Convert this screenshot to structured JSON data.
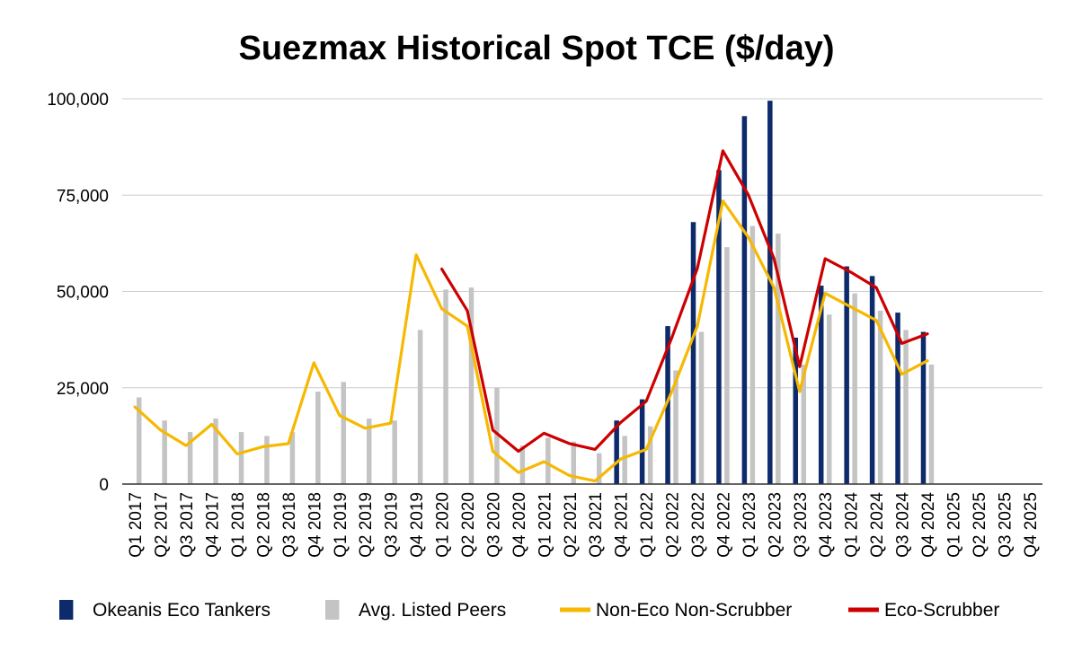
{
  "chart_data": {
    "type": "bar",
    "title": "Suezmax Historical Spot TCE ($/day)",
    "xlabel": "",
    "ylabel": "",
    "ylim": [
      0,
      100000
    ],
    "yticks": [
      0,
      25000,
      50000,
      75000,
      100000
    ],
    "ytick_labels": [
      "0",
      "25,000",
      "50,000",
      "75,000",
      "100,000"
    ],
    "grid": true,
    "legend_position": "bottom",
    "categories": [
      "Q1 2017",
      "Q2 2017",
      "Q3 2017",
      "Q4 2017",
      "Q1 2018",
      "Q2 2018",
      "Q3 2018",
      "Q4 2018",
      "Q1 2019",
      "Q2 2019",
      "Q3 2019",
      "Q4 2019",
      "Q1 2020",
      "Q2 2020",
      "Q3 2020",
      "Q4 2020",
      "Q1 2021",
      "Q2 2021",
      "Q3 2021",
      "Q4 2021",
      "Q1 2022",
      "Q2 2022",
      "Q3 2022",
      "Q4 2022",
      "Q1 2023",
      "Q2 2023",
      "Q3 2023",
      "Q4 2023",
      "Q1 2024",
      "Q2 2024",
      "Q3 2024",
      "Q4 2024",
      "Q1 2025",
      "Q2 2025",
      "Q3 2025",
      "Q4 2025"
    ],
    "series": [
      {
        "name": "Okeanis Eco Tankers",
        "type": "bar",
        "color": "#0d2a6b",
        "values": [
          null,
          null,
          null,
          null,
          null,
          null,
          null,
          null,
          null,
          null,
          null,
          null,
          null,
          null,
          null,
          null,
          null,
          null,
          null,
          16500,
          22000,
          41000,
          68000,
          81500,
          95500,
          99500,
          38000,
          51500,
          56500,
          54000,
          44500,
          39500,
          null,
          null,
          null,
          null
        ]
      },
      {
        "name": "Avg. Listed Peers",
        "type": "bar",
        "color": "#c4c4c4",
        "values": [
          22500,
          16500,
          13500,
          17000,
          13500,
          12500,
          13500,
          24000,
          26500,
          17000,
          16500,
          40000,
          50500,
          51000,
          25000,
          10000,
          12000,
          11000,
          8000,
          12500,
          15000,
          29500,
          39500,
          61500,
          67000,
          65000,
          31000,
          44000,
          49500,
          45000,
          40000,
          31000,
          null,
          null,
          null,
          null
        ]
      },
      {
        "name": "Non-Eco Non-Scrubber",
        "type": "line",
        "color": "#f6b800",
        "values": [
          20000,
          14000,
          10000,
          15500,
          7800,
          9700,
          10500,
          31500,
          17800,
          14500,
          15800,
          59500,
          45500,
          41000,
          8500,
          3000,
          5800,
          2200,
          800,
          6500,
          9000,
          24000,
          41000,
          73500,
          64000,
          51000,
          24000,
          49500,
          46000,
          42500,
          28500,
          32000,
          null,
          null,
          null,
          null
        ]
      },
      {
        "name": "Eco-Scrubber",
        "type": "line",
        "color": "#cc0000",
        "values": [
          null,
          null,
          null,
          null,
          null,
          null,
          null,
          null,
          null,
          null,
          null,
          null,
          55800,
          45000,
          14000,
          8500,
          13200,
          10500,
          9000,
          16000,
          21500,
          38000,
          56000,
          86500,
          75000,
          58500,
          30500,
          58500,
          55000,
          51000,
          36500,
          39000,
          null,
          null,
          null,
          null
        ]
      }
    ]
  }
}
